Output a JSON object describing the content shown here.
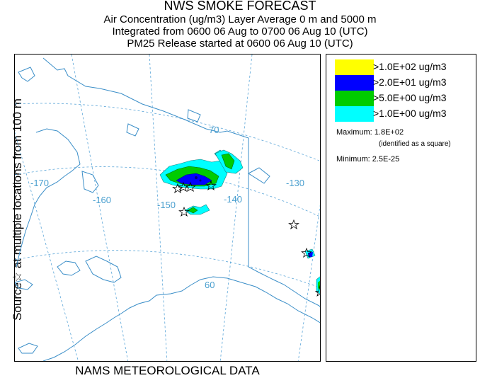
{
  "titles": {
    "line1": "NWS SMOKE FORECAST",
    "line2": "Air Concentration (ug/m3) Layer Average    0 m and  5000 m",
    "line3": "Integrated from 0600 06 Aug to 0700 06 Aug 10 (UTC)",
    "line4": "PM25 Release started at 0600 06 Aug 10 (UTC)"
  },
  "side_label": "Source☆ at multiple locations  from  100 m",
  "footer": "NAMS METEOROLOGICAL DATA",
  "legend": [
    {
      "label": ">1.0E+02 ug/m3",
      "color": "#ffff00"
    },
    {
      "label": ">2.0E+01 ug/m3",
      "color": "#0000ff"
    },
    {
      "label": ">5.0E+00 ug/m3",
      "color": "#00cc00"
    },
    {
      "label": ">1.0E+00 ug/m3",
      "color": "#00ffff"
    }
  ],
  "stats": {
    "maximum": "Maximum: 1.8E+02",
    "max_note": "(identified as a square)",
    "minimum": "Minimum: 2.5E-25"
  },
  "grid_labels": {
    "lon_170": "-170",
    "lon_160": "-160",
    "lon_150": "-150",
    "lon_140": "-140",
    "lon_130": "-130",
    "lat_70": "70",
    "lat_60": "60"
  },
  "colors": {
    "coast": "#3a8ec8",
    "grid": "#5aa5d8",
    "plume_cyan": "#00ffff",
    "plume_green": "#00cc00",
    "plume_blue": "#0000ff"
  }
}
